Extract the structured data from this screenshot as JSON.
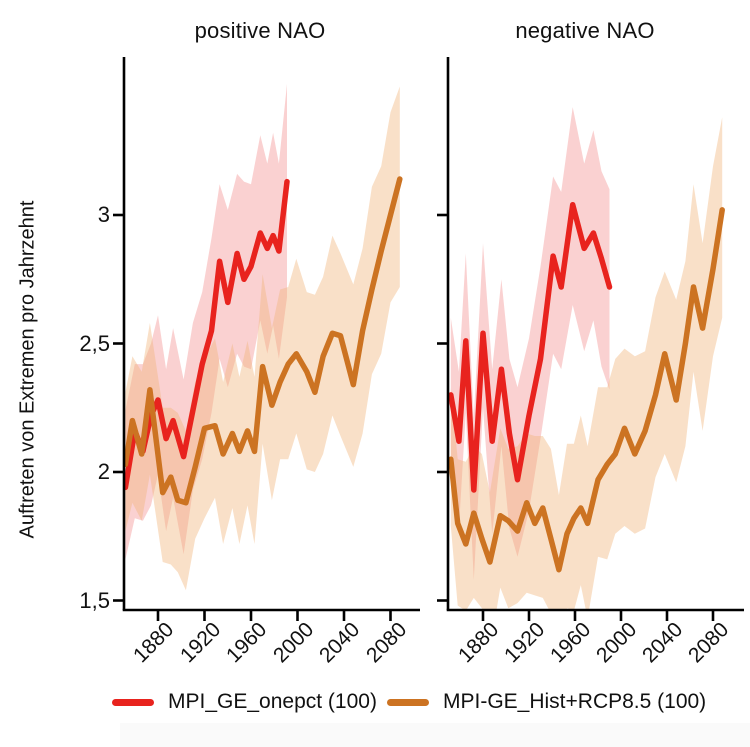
{
  "ylabel": "Auftreten von Extremen pro Jahrzehnt",
  "titles": {
    "left": "positive NAO",
    "right": "negative NAO"
  },
  "legend": [
    {
      "label": "MPI_GE_onepct (100)",
      "color": "#e8231e"
    },
    {
      "label": "MPI-GE_Hist+RCP8.5 (100)",
      "color": "#cc7322"
    }
  ],
  "colors": {
    "red_line": "#e8231e",
    "orange_line": "#cc7322",
    "red_band": "#f59a98",
    "orange_band": "#f0b57c",
    "axis": "#000000"
  },
  "chart_data": [
    {
      "type": "line",
      "title": "positive NAO",
      "xlabel": "",
      "ylabel": "Auftreten von Extremen pro Jahrzehnt",
      "xlim": [
        1850,
        2098
      ],
      "ylim": [
        1.5,
        3.6
      ],
      "grid": false,
      "x_ticks": [
        "1880",
        "1920",
        "1960",
        "2000",
        "2040",
        "2080"
      ],
      "x_tick_years": [
        1880,
        1920,
        1960,
        2000,
        2040,
        2080
      ],
      "y_ticks": [
        "3",
        "2,5",
        "2",
        "1,5"
      ],
      "y_tick_values": [
        3,
        2.5,
        2,
        1.5
      ],
      "series": [
        {
          "name": "MPI_GE_onepct (100)",
          "color": "#e8231e",
          "band_color": "#f59a98",
          "years": [
            1852,
            1860,
            1867,
            1874,
            1880,
            1887,
            1893,
            1902,
            1910,
            1918,
            1926,
            1933,
            1940,
            1948,
            1954,
            1960,
            1968,
            1974,
            1979,
            1984,
            1991
          ],
          "values": [
            1.94,
            2.16,
            2.08,
            2.22,
            2.28,
            2.13,
            2.2,
            2.06,
            2.24,
            2.42,
            2.55,
            2.82,
            2.66,
            2.85,
            2.75,
            2.8,
            2.93,
            2.87,
            2.92,
            2.86,
            3.13
          ],
          "band_upper": [
            2.24,
            2.42,
            2.42,
            2.5,
            2.61,
            2.4,
            2.56,
            2.36,
            2.58,
            2.7,
            2.91,
            3.12,
            3.02,
            3.16,
            3.13,
            3.12,
            3.31,
            3.2,
            3.32,
            3.2,
            3.51
          ],
          "band_lower": [
            1.66,
            1.82,
            1.81,
            1.87,
            1.99,
            1.77,
            1.9,
            1.68,
            1.93,
            2.05,
            2.23,
            2.44,
            2.33,
            2.46,
            2.41,
            2.4,
            2.59,
            2.46,
            2.57,
            2.44,
            2.68
          ]
        },
        {
          "name": "MPI-GE_Hist+RCP8.5 (100)",
          "color": "#cc7322",
          "band_color": "#f0b57c",
          "years": [
            1852,
            1858,
            1866,
            1873,
            1884,
            1891,
            1897,
            1904,
            1912,
            1920,
            1929,
            1936,
            1944,
            1950,
            1957,
            1963,
            1970,
            1978,
            1985,
            1992,
            1999,
            2008,
            2015,
            2022,
            2030,
            2037,
            2048,
            2056,
            2064,
            2072,
            2080,
            2088
          ],
          "values": [
            2.03,
            2.2,
            2.07,
            2.32,
            1.92,
            1.98,
            1.89,
            1.88,
            2.02,
            2.17,
            2.18,
            2.07,
            2.15,
            2.08,
            2.16,
            2.08,
            2.41,
            2.26,
            2.35,
            2.42,
            2.46,
            2.39,
            2.31,
            2.45,
            2.54,
            2.53,
            2.34,
            2.55,
            2.71,
            2.86,
            3.0,
            3.14
          ],
          "band_upper": [
            2.31,
            2.45,
            2.39,
            2.58,
            2.25,
            2.25,
            2.23,
            2.16,
            2.35,
            2.44,
            2.52,
            2.35,
            2.5,
            2.37,
            2.51,
            2.37,
            2.77,
            2.56,
            2.71,
            2.72,
            2.83,
            2.7,
            2.69,
            2.76,
            2.92,
            2.85,
            2.73,
            2.87,
            3.11,
            3.19,
            3.4,
            3.5
          ],
          "band_lower": [
            1.77,
            1.88,
            1.81,
            1.99,
            1.65,
            1.64,
            1.61,
            1.54,
            1.74,
            1.82,
            1.9,
            1.72,
            1.86,
            1.72,
            1.87,
            1.72,
            2.11,
            1.89,
            2.05,
            2.05,
            2.15,
            2.01,
            2.0,
            2.07,
            2.22,
            2.14,
            2.02,
            2.15,
            2.38,
            2.46,
            2.66,
            2.72
          ]
        }
      ]
    },
    {
      "type": "line",
      "title": "negative NAO",
      "xlabel": "",
      "ylabel": "",
      "xlim": [
        1850,
        2098
      ],
      "ylim": [
        1.5,
        3.6
      ],
      "grid": false,
      "x_ticks": [
        "1880",
        "1920",
        "1960",
        "2000",
        "2040",
        "2080"
      ],
      "x_tick_years": [
        1880,
        1920,
        1960,
        2000,
        2040,
        2080
      ],
      "y_ticks": [
        "3",
        "2,5",
        "2",
        "1,5"
      ],
      "y_tick_values": [
        3,
        2.5,
        2,
        1.5
      ],
      "series": [
        {
          "name": "MPI_GE_onepct (100)",
          "color": "#e8231e",
          "band_color": "#f59a98",
          "years": [
            1852,
            1859,
            1865,
            1872,
            1880,
            1888,
            1896,
            1903,
            1910,
            1920,
            1930,
            1941,
            1948,
            1958,
            1968,
            1976,
            1983,
            1990
          ],
          "values": [
            2.3,
            2.12,
            2.51,
            1.93,
            2.54,
            2.12,
            2.4,
            2.15,
            1.97,
            2.22,
            2.44,
            2.84,
            2.72,
            3.04,
            2.87,
            2.93,
            2.83,
            2.72
          ],
          "band_upper": [
            2.6,
            2.39,
            2.85,
            2.21,
            2.89,
            2.4,
            2.75,
            2.44,
            2.33,
            2.52,
            2.8,
            3.15,
            3.09,
            3.42,
            3.2,
            3.33,
            3.17,
            3.1
          ],
          "band_lower": [
            2.02,
            1.78,
            2.23,
            1.58,
            2.25,
            1.76,
            2.1,
            1.78,
            1.67,
            1.85,
            2.13,
            2.46,
            2.4,
            2.65,
            2.47,
            2.59,
            2.41,
            2.32
          ]
        },
        {
          "name": "MPI-GE_Hist+RCP8.5 (100)",
          "color": "#cc7322",
          "band_color": "#f0b57c",
          "years": [
            1852,
            1858,
            1865,
            1872,
            1879,
            1886,
            1895,
            1902,
            1910,
            1918,
            1925,
            1932,
            1939,
            1946,
            1953,
            1959,
            1965,
            1971,
            1980,
            1988,
            1995,
            2003,
            2012,
            2021,
            2030,
            2038,
            2048,
            2056,
            2063,
            2071,
            2080,
            2088
          ],
          "values": [
            2.05,
            1.8,
            1.72,
            1.84,
            1.74,
            1.65,
            1.83,
            1.81,
            1.77,
            1.88,
            1.8,
            1.86,
            1.74,
            1.62,
            1.76,
            1.82,
            1.86,
            1.8,
            1.97,
            2.03,
            2.07,
            2.17,
            2.07,
            2.16,
            2.3,
            2.46,
            2.28,
            2.5,
            2.72,
            2.56,
            2.79,
            3.02
          ],
          "band_upper": [
            2.33,
            2.05,
            2.04,
            2.1,
            2.07,
            1.92,
            2.17,
            2.09,
            2.1,
            2.15,
            2.14,
            2.14,
            2.09,
            1.91,
            2.11,
            2.11,
            2.22,
            2.1,
            2.33,
            2.33,
            2.44,
            2.48,
            2.45,
            2.47,
            2.68,
            2.78,
            2.67,
            2.82,
            3.12,
            2.89,
            3.19,
            3.38
          ],
          "band_lower": [
            1.79,
            1.48,
            1.46,
            1.51,
            1.47,
            1.31,
            1.55,
            1.47,
            1.49,
            1.53,
            1.52,
            1.51,
            1.45,
            1.26,
            1.47,
            1.46,
            1.56,
            1.43,
            1.67,
            1.66,
            1.76,
            1.79,
            1.76,
            1.78,
            1.98,
            2.07,
            1.96,
            2.1,
            2.39,
            2.16,
            2.45,
            2.6
          ]
        }
      ]
    }
  ]
}
